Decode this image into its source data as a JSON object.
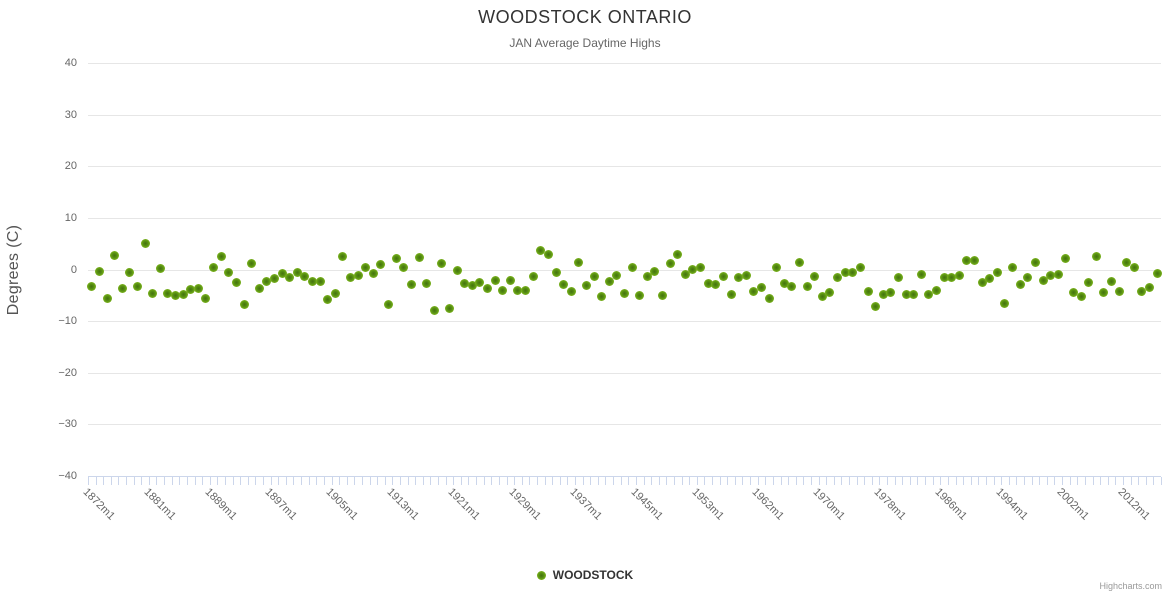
{
  "header": {
    "title": "WOODSTOCK ONTARIO",
    "subtitle": "JAN Average Daytime Highs"
  },
  "legend": {
    "label": "WOODSTOCK"
  },
  "credit": {
    "label": "Highcharts.com"
  },
  "colors": {
    "point_outer": "#7db41e",
    "point_center": "#44700f",
    "gridline": "#e6e6e6",
    "axis_line": "#ccd6eb",
    "title_text": "#333333",
    "tick_text": "#666666",
    "credit_text": "#999999"
  },
  "chart_data": {
    "type": "scatter",
    "title": "WOODSTOCK ONTARIO",
    "subtitle": "JAN Average Daytime Highs",
    "xlabel": "",
    "ylabel": "Degrees (C)",
    "ylim": [
      -40,
      40
    ],
    "yticks": [
      40,
      30,
      20,
      10,
      0,
      -10,
      -20,
      -30,
      -40
    ],
    "ytick_labels": [
      "40",
      "30",
      "20",
      "10",
      "0",
      "−10",
      "−20",
      "−30",
      "−40"
    ],
    "grid": true,
    "legend_position": "bottom-center",
    "x_label_every": 8,
    "visible_x_labels": [
      "1872m1",
      "1881m1",
      "1889m1",
      "1897m1",
      "1905m1",
      "1913m1",
      "1921m1",
      "1929m1",
      "1937m1",
      "1945m1",
      "1953m1",
      "1962m1",
      "1970m1",
      "1978m1",
      "1986m1",
      "1994m1",
      "2002m1",
      "2012m1"
    ],
    "series": [
      {
        "name": "WOODSTOCK",
        "categories": [
          "1872m1",
          "1873m1",
          "1874m1",
          "1875m1",
          "1876m1",
          "1877m1",
          "1878m1",
          "1880m1",
          "1881m1",
          "1882m1",
          "1883m1",
          "1884m1",
          "1885m1",
          "1886m1",
          "1887m1",
          "1888m1",
          "1889m1",
          "1890m1",
          "1891m1",
          "1892m1",
          "1893m1",
          "1894m1",
          "1895m1",
          "1896m1",
          "1897m1",
          "1898m1",
          "1899m1",
          "1900m1",
          "1901m1",
          "1902m1",
          "1903m1",
          "1904m1",
          "1905m1",
          "1906m1",
          "1907m1",
          "1908m1",
          "1909m1",
          "1910m1",
          "1911m1",
          "1912m1",
          "1913m1",
          "1914m1",
          "1915m1",
          "1916m1",
          "1917m1",
          "1918m1",
          "1919m1",
          "1920m1",
          "1921m1",
          "1922m1",
          "1923m1",
          "1924m1",
          "1925m1",
          "1926m1",
          "1927m1",
          "1928m1",
          "1929m1",
          "1930m1",
          "1931m1",
          "1932m1",
          "1933m1",
          "1934m1",
          "1935m1",
          "1936m1",
          "1937m1",
          "1938m1",
          "1939m1",
          "1940m1",
          "1941m1",
          "1942m1",
          "1943m1",
          "1944m1",
          "1945m1",
          "1946m1",
          "1947m1",
          "1948m1",
          "1949m1",
          "1950m1",
          "1951m1",
          "1952m1",
          "1953m1",
          "1955m1",
          "1956m1",
          "1957m1",
          "1958m1",
          "1959m1",
          "1960m1",
          "1961m1",
          "1962m1",
          "1963m1",
          "1964m1",
          "1965m1",
          "1966m1",
          "1967m1",
          "1968m1",
          "1969m1",
          "1970m1",
          "1971m1",
          "1972m1",
          "1973m1",
          "1974m1",
          "1975m1",
          "1976m1",
          "1977m1",
          "1978m1",
          "1979m1",
          "1980m1",
          "1981m1",
          "1982m1",
          "1983m1",
          "1984m1",
          "1985m1",
          "1986m1",
          "1987m1",
          "1988m1",
          "1989m1",
          "1990m1",
          "1991m1",
          "1992m1",
          "1993m1",
          "1994m1",
          "1995m1",
          "1996m1",
          "1997m1",
          "1998m1",
          "1999m1",
          "2000m1",
          "2001m1",
          "2002m1",
          "2004m1",
          "2005m1",
          "2006m1",
          "2007m1",
          "2008m1",
          "2010m1",
          "2011m1",
          "2012m1",
          "2013m1",
          "2014m1",
          "2015m1",
          "2016m1"
        ],
        "values": [
          -3.2,
          -0.3,
          -5.6,
          2.7,
          -3.7,
          -0.5,
          -3.2,
          5.1,
          -4.6,
          0.2,
          -4.6,
          -5.0,
          -4.9,
          -3.9,
          -3.7,
          -5.6,
          0.3,
          2.5,
          -0.5,
          -2.5,
          -6.8,
          1.2,
          -3.7,
          -2.4,
          -1.8,
          -0.8,
          -1.6,
          -0.5,
          -1.4,
          -2.3,
          -2.4,
          -5.8,
          -4.6,
          2.6,
          -1.5,
          -1.1,
          0.3,
          -0.8,
          1.0,
          -6.7,
          2.1,
          0.3,
          -2.9,
          2.4,
          -2.8,
          -7.9,
          1.1,
          -7.5,
          -0.1,
          -2.8,
          -3.1,
          -2.6,
          -3.7,
          -2.1,
          -4.0,
          -2.1,
          -4.0,
          -4.0,
          -1.3,
          3.7,
          3.0,
          -0.6,
          -2.9,
          -4.2,
          1.4,
          -3.1,
          -1.3,
          -5.3,
          -2.3,
          -1.1,
          -4.6,
          0.4,
          -5.0,
          -1.3,
          -0.3,
          -5.0,
          1.1,
          3.0,
          -1.0,
          0.0,
          0.4,
          -2.7,
          -2.9,
          -1.4,
          -4.8,
          -1.5,
          -1.2,
          -4.2,
          -3.4,
          -5.6,
          0.3,
          -2.7,
          -3.2,
          1.3,
          -3.3,
          -1.3,
          -5.2,
          -4.4,
          -1.6,
          -0.6,
          -0.5,
          0.4,
          -4.2,
          -7.1,
          -4.8,
          -4.4,
          -1.6,
          -4.8,
          -4.8,
          -1.0,
          -4.8,
          -4.0,
          -1.6,
          -1.5,
          -1.2,
          1.7,
          1.7,
          -2.6,
          -1.8,
          -0.5,
          -6.6,
          0.4,
          -2.9,
          -1.5,
          1.3,
          -2.1,
          -1.2,
          -1.0,
          2.1,
          -4.5,
          -5.3,
          -2.6,
          2.6,
          -4.5,
          -2.3,
          -4.2,
          1.4,
          0.4,
          -4.2,
          -3.4,
          -0.8
        ]
      }
    ]
  }
}
